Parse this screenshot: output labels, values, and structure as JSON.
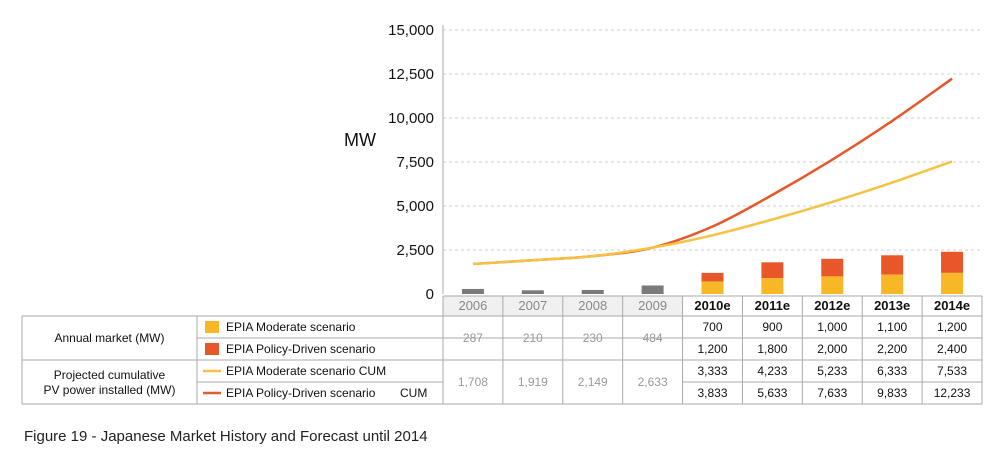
{
  "caption": "Figure 19 - Japanese Market History and Forecast until 2014",
  "chart_data": {
    "type": "bar",
    "ylabel": "MW",
    "ylim": [
      0,
      15000
    ],
    "yticks": [
      "0",
      "2,500",
      "5,000",
      "7,500",
      "10,000",
      "12,500",
      "15,000"
    ],
    "ytick_values": [
      0,
      2500,
      5000,
      7500,
      10000,
      12500,
      15000
    ],
    "grid": true,
    "categories": [
      "2006",
      "2007",
      "2008",
      "2009",
      "2010e",
      "2011e",
      "2012e",
      "2013e",
      "2014e"
    ],
    "historical_count": 4,
    "colors": {
      "historical": "#7a7a7a",
      "moderate": "#f7b726",
      "policy": "#e8572a",
      "moderate_line": "#f5c242",
      "policy_line": "#e8572a"
    },
    "table_rows": [
      {
        "group": "Annual market (MW)",
        "series": [
          {
            "name": "EPIA Moderate scenario",
            "kind": "bar",
            "values": [
              287,
              210,
              230,
              484,
              700,
              900,
              1000,
              1100,
              1200
            ],
            "labels": [
              "287",
              "210",
              "230",
              "484",
              "700",
              "900",
              "1,000",
              "1,100",
              "1,200"
            ]
          },
          {
            "name": "EPIA Policy-Driven scenario",
            "kind": "bar",
            "values": [
              null,
              null,
              null,
              null,
              1200,
              1800,
              2000,
              2200,
              2400
            ],
            "labels": [
              "",
              "",
              "",
              "",
              "1,200",
              "1,800",
              "2,000",
              "2,200",
              "2,400"
            ]
          }
        ]
      },
      {
        "group": "Projected cumulative PV power installed (MW)",
        "group_lines": [
          "Projected cumulative",
          "PV power installed (MW)"
        ],
        "series": [
          {
            "name": "EPIA Moderate scenario CUM",
            "kind": "line",
            "values": [
              1708,
              1919,
              2149,
              2633,
              3333,
              4233,
              5233,
              6333,
              7533
            ],
            "labels": [
              "1,708",
              "1,919",
              "2,149",
              "2,633",
              "3,333",
              "4,233",
              "5,233",
              "6,333",
              "7,533"
            ]
          },
          {
            "name": "EPIA Policy-Driven scenario",
            "name_suffix": "CUM",
            "kind": "line",
            "values": [
              1708,
              1919,
              2149,
              2633,
              3833,
              5633,
              7633,
              9833,
              12233
            ],
            "labels": [
              "",
              "",
              "",
              "",
              "3,833",
              "5,633",
              "7,633",
              "9,833",
              "12,233"
            ]
          }
        ]
      }
    ]
  }
}
